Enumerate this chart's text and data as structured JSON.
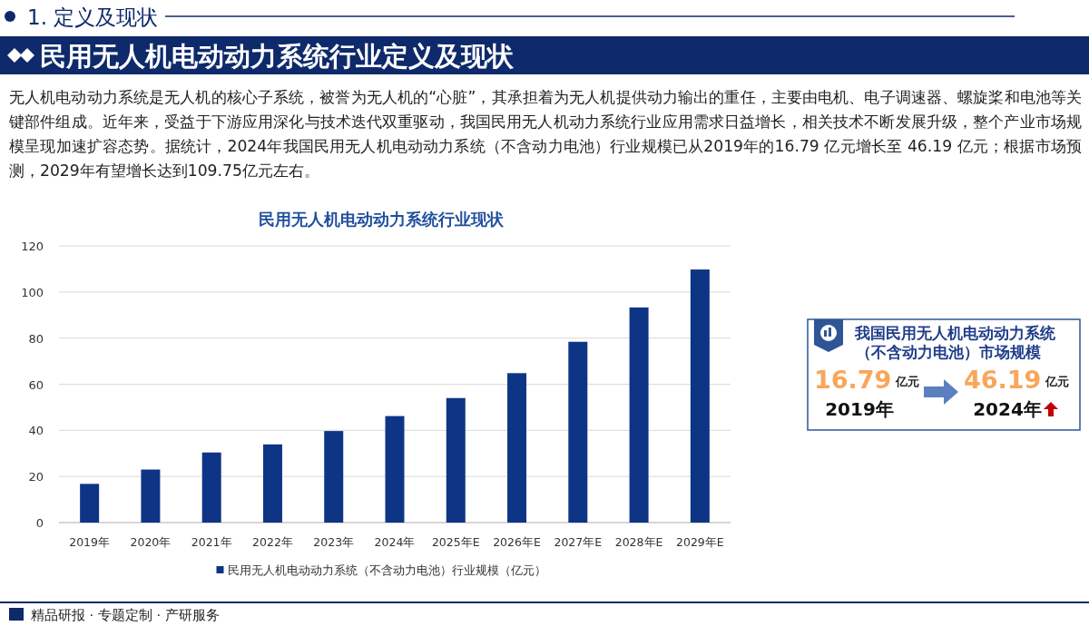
{
  "chart_data": {
    "type": "bar",
    "title": "民用无人机电动动力系统行业现状",
    "categories": [
      "2019年",
      "2020年",
      "2021年",
      "2022年",
      "2023年",
      "2024年",
      "2025年E",
      "2026年E",
      "2027年E",
      "2028年E",
      "2029年E"
    ],
    "series": [
      {
        "name": "民用无人机电动动力系统（不含动力电池）行业规模（亿元）",
        "color": "#0e3585",
        "values": [
          16.79,
          23.0,
          30.4,
          33.9,
          39.7,
          46.19,
          54.0,
          64.8,
          78.4,
          93.3,
          109.75
        ]
      }
    ],
    "ylim": [
      0,
      120
    ],
    "yticks": [
      0,
      20,
      40,
      60,
      80,
      100,
      120
    ],
    "grid": "y",
    "legend": "bottom",
    "annotations": [
      "1. 定义及现状",
      "民用无人机电动动力系统行业定义及现状",
      "无人机电动动力系统是无人机的核心子系统，被誉为无人机的“心脏”，其承担着为无人机提供动力输出的重任，主要由电机、电子调速器、螺旋桨和电池等关键部件组成。近年来，受益于下游应用深化与技术迭代双重驱动，我国民用无人机动力系统行业应用需求日益增长，相关技术不断发展升级，整个产业市场规模呈现加速扩容态势。据统计，2024年我国民用无人机电动动力系统（不含动力电池）行业规模已从2019年的16.79 亿元增长至 46.19 亿元；根据市场预测，2029年有望增长达到109.75亿元左右。",
      "我国民用无人机电动动力系统",
      "（不含动力电池）市场规模",
      "16.79",
      "亿元",
      "2019年",
      "46.19",
      "亿元",
      "2024年",
      "精品研报 · 专题定制 · 产研服务"
    ]
  }
}
